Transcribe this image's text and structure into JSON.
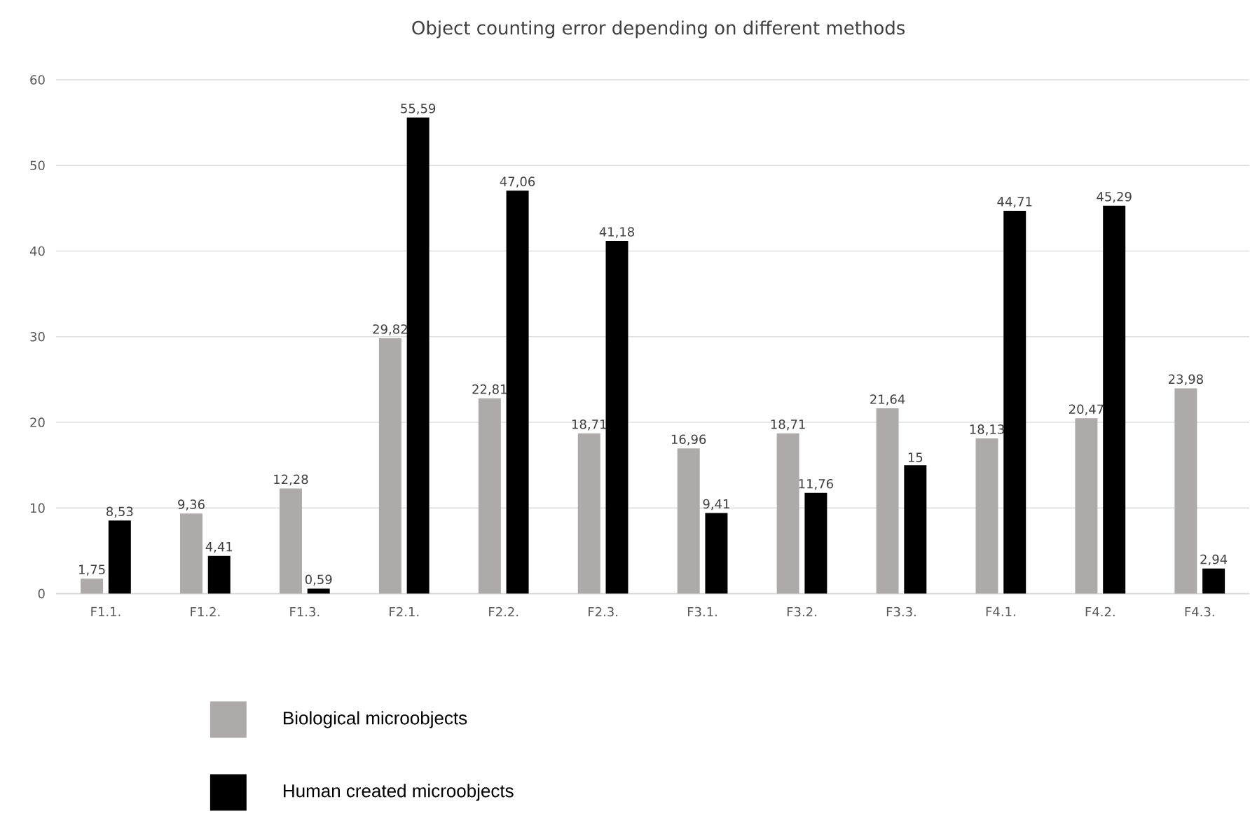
{
  "chart_data": {
    "type": "bar",
    "title": "Object counting error depending on different methods",
    "categories": [
      "F1.1.",
      "F1.2.",
      "F1.3.",
      "F2.1.",
      "F2.2.",
      "F2.3.",
      "F3.1.",
      "F3.2.",
      "F3.3.",
      "F4.1.",
      "F4.2.",
      "F4.3."
    ],
    "series": [
      {
        "name": "Biological microobjects",
        "color": "#aeaaaa",
        "values": [
          1.75,
          9.36,
          12.28,
          29.82,
          22.81,
          18.71,
          16.96,
          18.71,
          21.64,
          18.13,
          20.47,
          23.98
        ],
        "value_labels": [
          "1,75",
          "9,36",
          "12,28",
          "29,82",
          "22,81",
          "18,71",
          "16,96",
          "18,71",
          "21,64",
          "18,13",
          "20,47",
          "23,98"
        ]
      },
      {
        "name": "Human created microobjects",
        "color": "#000000",
        "values": [
          8.53,
          4.41,
          0.59,
          55.59,
          47.06,
          41.18,
          9.41,
          11.76,
          15,
          44.71,
          45.29,
          2.94
        ],
        "value_labels": [
          "8,53",
          "4,41",
          "0,59",
          "55,59",
          "47,06",
          "41,18",
          "9,41",
          "11,76",
          "15",
          "44,71",
          "45,29",
          "2,94"
        ]
      }
    ],
    "ylim": [
      0,
      60
    ],
    "yticks": [
      0,
      10,
      20,
      30,
      40,
      50,
      60
    ],
    "grid": "y",
    "legend": "bottom"
  }
}
